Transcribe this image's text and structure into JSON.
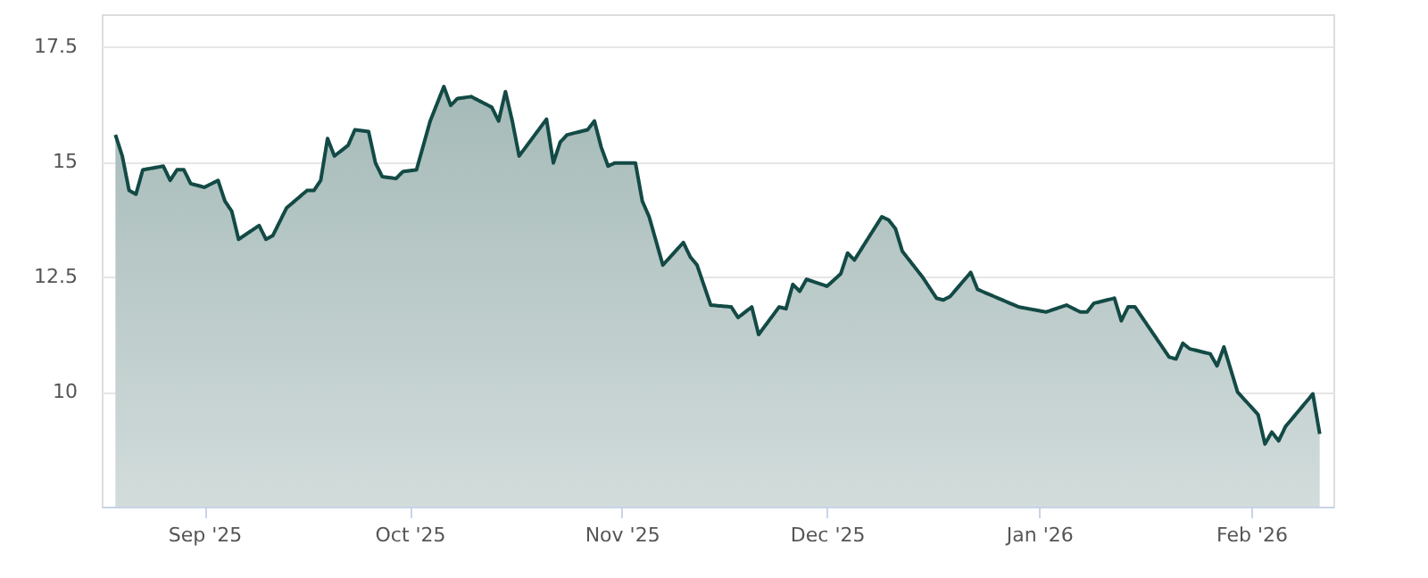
{
  "chart_data": {
    "type": "area",
    "x": [
      "2025-08-19",
      "2025-08-20",
      "2025-08-21",
      "2025-08-22",
      "2025-08-23",
      "2025-08-26",
      "2025-08-27",
      "2025-08-28",
      "2025-08-29",
      "2025-08-30",
      "2025-09-01",
      "2025-09-03",
      "2025-09-04",
      "2025-09-05",
      "2025-09-06",
      "2025-09-09",
      "2025-09-10",
      "2025-09-11",
      "2025-09-13",
      "2025-09-16",
      "2025-09-17",
      "2025-09-18",
      "2025-09-19",
      "2025-09-20",
      "2025-09-22",
      "2025-09-23",
      "2025-09-25",
      "2025-09-26",
      "2025-09-27",
      "2025-09-29",
      "2025-09-30",
      "2025-10-02",
      "2025-10-04",
      "2025-10-06",
      "2025-10-07",
      "2025-10-08",
      "2025-10-10",
      "2025-10-13",
      "2025-10-14",
      "2025-10-15",
      "2025-10-16",
      "2025-10-17",
      "2025-10-21",
      "2025-10-22",
      "2025-10-23",
      "2025-10-24",
      "2025-10-27",
      "2025-10-28",
      "2025-10-29",
      "2025-10-30",
      "2025-10-31",
      "2025-11-03",
      "2025-11-04",
      "2025-11-05",
      "2025-11-07",
      "2025-11-10",
      "2025-11-11",
      "2025-11-12",
      "2025-11-14",
      "2025-11-17",
      "2025-11-18",
      "2025-11-20",
      "2025-11-21",
      "2025-11-24",
      "2025-11-25",
      "2025-11-26",
      "2025-11-27",
      "2025-11-28",
      "2025-12-01",
      "2025-12-03",
      "2025-12-04",
      "2025-12-05",
      "2025-12-09",
      "2025-12-10",
      "2025-12-11",
      "2025-12-12",
      "2025-12-15",
      "2025-12-17",
      "2025-12-18",
      "2025-12-19",
      "2025-12-22",
      "2025-12-23",
      "2025-12-29",
      "2026-01-02",
      "2026-01-05",
      "2026-01-07",
      "2026-01-08",
      "2026-01-09",
      "2026-01-12",
      "2026-01-13",
      "2026-01-14",
      "2026-01-15",
      "2026-01-20",
      "2026-01-21",
      "2026-01-22",
      "2026-01-23",
      "2026-01-26",
      "2026-01-27",
      "2026-01-28",
      "2026-01-30",
      "2026-02-02",
      "2026-02-03",
      "2026-02-04",
      "2026-02-05",
      "2026-02-06",
      "2026-02-10",
      "2026-02-11"
    ],
    "series": [
      {
        "color": "#134a45",
        "values": [
          15.58,
          15.12,
          14.37,
          14.29,
          14.82,
          14.9,
          14.59,
          14.82,
          14.82,
          14.52,
          14.44,
          14.59,
          14.14,
          13.92,
          13.31,
          13.61,
          13.31,
          13.39,
          13.99,
          14.37,
          14.37,
          14.59,
          15.5,
          15.12,
          15.35,
          15.69,
          15.65,
          14.97,
          14.67,
          14.63,
          14.78,
          14.82,
          15.88,
          16.63,
          16.22,
          16.37,
          16.41,
          16.18,
          15.88,
          16.52,
          15.88,
          15.12,
          15.92,
          14.97,
          15.42,
          15.58,
          15.69,
          15.88,
          15.31,
          14.9,
          14.97,
          14.97,
          14.14,
          13.8,
          12.75,
          13.24,
          12.93,
          12.75,
          11.88,
          11.84,
          11.61,
          11.84,
          11.24,
          11.84,
          11.8,
          12.33,
          12.18,
          12.44,
          12.29,
          12.56,
          13.01,
          12.86,
          13.8,
          13.73,
          13.54,
          13.05,
          12.48,
          12.03,
          11.99,
          12.07,
          12.59,
          12.22,
          11.84,
          11.73,
          11.88,
          11.73,
          11.73,
          11.92,
          12.03,
          11.54,
          11.84,
          11.84,
          10.75,
          10.71,
          11.05,
          10.93,
          10.82,
          10.56,
          10.97,
          9.99,
          9.5,
          8.86,
          9.12,
          8.93,
          9.24,
          9.95,
          9.08
        ]
      }
    ],
    "xlim": [
      "2025-08-17",
      "2026-02-13"
    ],
    "xticks": [
      {
        "value": "2025-09-01",
        "label": "Sep '25"
      },
      {
        "value": "2025-10-01",
        "label": "Oct '25"
      },
      {
        "value": "2025-11-01",
        "label": "Nov '25"
      },
      {
        "value": "2025-12-01",
        "label": "Dec '25"
      },
      {
        "value": "2026-01-01",
        "label": "Jan '26"
      },
      {
        "value": "2026-02-01",
        "label": "Feb '26"
      }
    ],
    "ylim": [
      7.5,
      18.2
    ],
    "yticks": [
      10,
      12.5,
      15,
      17.5
    ],
    "grid": "y",
    "line_style": "solid",
    "marker": "none"
  }
}
